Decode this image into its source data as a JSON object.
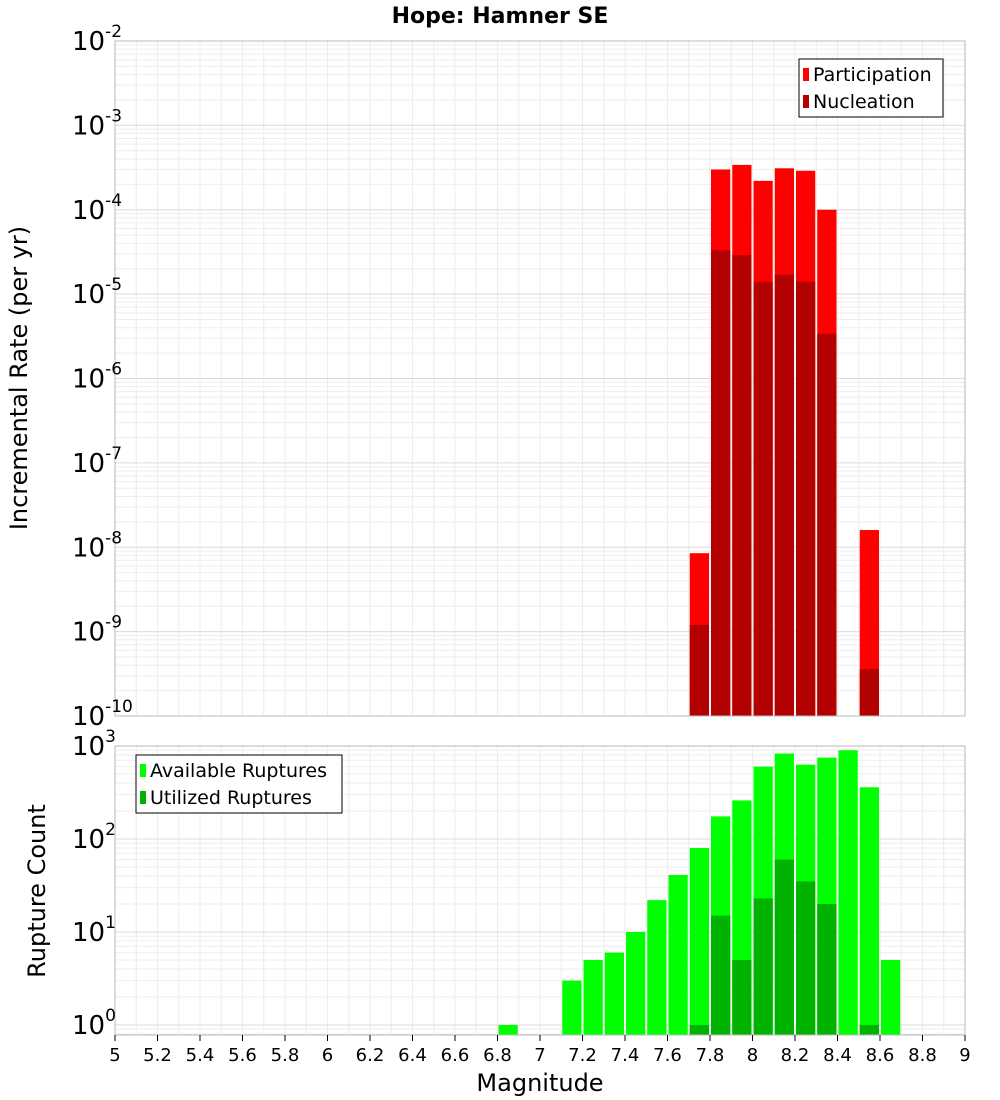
{
  "chart_data": {
    "type": "bar",
    "title": "Hope: Hamner SE",
    "xlabel": "Magnitude",
    "xlim": [
      5,
      9
    ],
    "xticks": [
      "5",
      "5.2",
      "5.4",
      "5.6",
      "5.8",
      "6",
      "6.2",
      "6.4",
      "6.6",
      "6.8",
      "7",
      "7.2",
      "7.4",
      "7.6",
      "7.8",
      "8",
      "8.2",
      "8.4",
      "8.6",
      "8.8",
      "9"
    ],
    "bin_width": 0.1,
    "panels": [
      {
        "ylabel": "Incremental Rate (per yr)",
        "yscale": "log",
        "ylim": [
          1e-10,
          0.01
        ],
        "ytick_exponents": [
          "-2",
          "-3",
          "-4",
          "-5",
          "-6",
          "-7",
          "-8",
          "-9",
          "-10"
        ],
        "legend_position": "top-right",
        "legend": [
          "Participation",
          "Nucleation"
        ],
        "colors": [
          "#ff0000",
          "#b30000"
        ],
        "x": [
          7.75,
          7.85,
          7.95,
          8.05,
          8.15,
          8.25,
          8.35,
          8.55
        ],
        "series": [
          {
            "name": "Participation",
            "values": [
              8.5e-09,
              0.0003,
              0.00034,
              0.00022,
              0.00031,
              0.00029,
              0.0001,
              1.6e-08
            ]
          },
          {
            "name": "Nucleation",
            "values": [
              1.2e-09,
              3.3e-05,
              2.9e-05,
              1.4e-05,
              1.7e-05,
              1.4e-05,
              3.4e-06,
              3.6e-10
            ]
          }
        ]
      },
      {
        "ylabel": "Rupture Count",
        "yscale": "log",
        "ylim": [
          0.78,
          1000
        ],
        "ytick_exponents": [
          "3",
          "2",
          "1",
          "0"
        ],
        "legend_position": "top-left",
        "legend": [
          "Available Ruptures",
          "Utilized Ruptures"
        ],
        "colors": [
          "#00ff00",
          "#00b300"
        ],
        "x": [
          6.85,
          7.15,
          7.25,
          7.35,
          7.45,
          7.55,
          7.65,
          7.75,
          7.85,
          7.95,
          8.05,
          8.15,
          8.25,
          8.35,
          8.45,
          8.55,
          8.65
        ],
        "series": [
          {
            "name": "Available Ruptures",
            "values": [
              1,
              3,
              5,
              6,
              10,
              22,
              41,
              80,
              175,
              260,
              600,
              830,
              630,
              750,
              900,
              360,
              5
            ]
          },
          {
            "name": "Utilized Ruptures",
            "values": [
              0,
              0,
              0,
              0,
              0,
              0,
              0,
              1,
              15,
              5,
              23,
              60,
              35,
              20,
              0,
              1,
              0
            ]
          }
        ]
      }
    ]
  }
}
